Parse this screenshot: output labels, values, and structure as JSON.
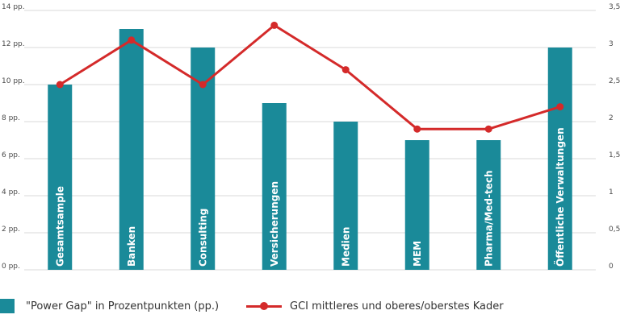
{
  "chart_data": {
    "type": "bar",
    "categories": [
      "Gesamtsample",
      "Banken",
      "Consulting",
      "Versicherungen",
      "Medien",
      "MEM",
      "Pharma/Med-tech",
      "Öffentliche Verwaltungen"
    ],
    "series": [
      {
        "name": "\"Power Gap\" in Prozentpunkten (pp.)",
        "type": "bar",
        "axis": "left",
        "color": "#1a8a99",
        "values": [
          10,
          13,
          12,
          9,
          8,
          7,
          7,
          12
        ]
      },
      {
        "name": "GCI mittleres und oberes/oberstes Kader",
        "type": "line",
        "axis": "right",
        "color": "#d42a2a",
        "values": [
          2.5,
          3.1,
          2.5,
          3.3,
          2.7,
          1.9,
          1.9,
          2.2
        ]
      }
    ],
    "left_axis": {
      "ticks": [
        "0 pp.",
        "2 pp.",
        "4 pp.",
        "6 pp.",
        "8 pp.",
        "10 pp.",
        "12 pp.",
        "14 pp."
      ],
      "range": [
        0,
        14
      ]
    },
    "right_axis": {
      "ticks": [
        "0",
        "0,5",
        "1",
        "1,5",
        "2",
        "2,5",
        "3",
        "3,5"
      ],
      "range": [
        0,
        3.5
      ]
    },
    "grid": true,
    "legend_position": "bottom"
  }
}
